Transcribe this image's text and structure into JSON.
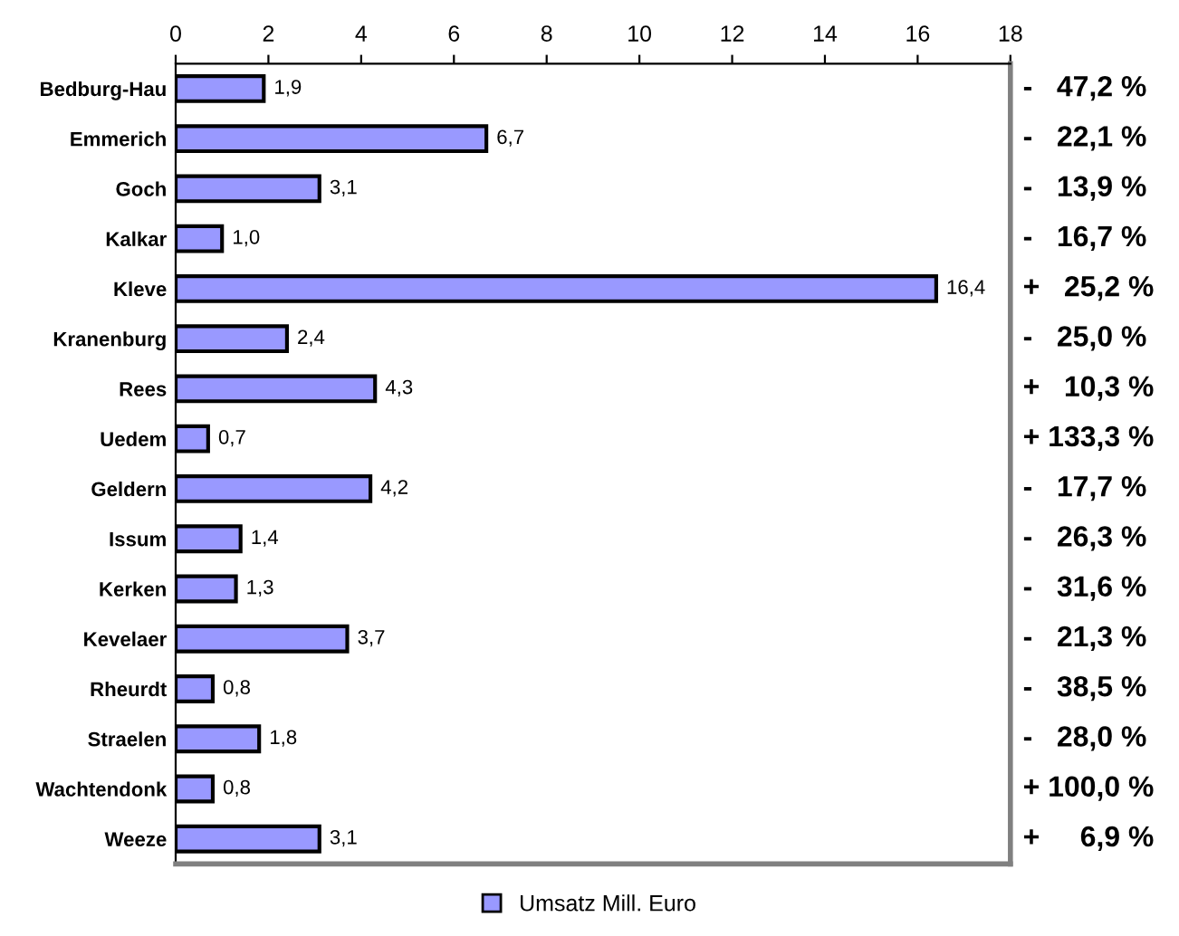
{
  "chart_data": {
    "type": "bar",
    "orientation": "horizontal",
    "categories": [
      "Bedburg-Hau",
      "Emmerich",
      "Goch",
      "Kalkar",
      "Kleve",
      "Kranenburg",
      "Rees",
      "Uedem",
      "Geldern",
      "Issum",
      "Kerken",
      "Kevelaer",
      "Rheurdt",
      "Straelen",
      "Wachtendonk",
      "Weeze"
    ],
    "series": [
      {
        "name": "Umsatz Mill. Euro",
        "color": "#9999ff",
        "values": [
          1.9,
          6.7,
          3.1,
          1.0,
          16.4,
          2.4,
          4.3,
          0.7,
          4.2,
          1.4,
          1.3,
          3.7,
          0.8,
          1.8,
          0.8,
          3.1
        ],
        "value_labels": [
          "1,9",
          "6,7",
          "3,1",
          "1,0",
          "16,4",
          "2,4",
          "4,3",
          "0,7",
          "4,2",
          "1,4",
          "1,3",
          "3,7",
          "0,8",
          "1,8",
          "0,8",
          "3,1"
        ]
      }
    ],
    "xlim": [
      0,
      18
    ],
    "xticks": [
      0,
      2,
      4,
      6,
      8,
      10,
      12,
      14,
      16,
      18
    ],
    "grid": false,
    "legend": "bottom",
    "annotations": [
      "-   47,2 %",
      "-   22,1 %",
      "-   13,9 %",
      "-   16,7 %",
      "+   25,2 %",
      "-   25,0 %",
      "+   10,3 %",
      "+ 133,3 %",
      "-   17,7 %",
      "-   26,3 %",
      "-   31,6 %",
      "-   21,3 %",
      "-   38,5 %",
      "-   28,0 %",
      "+ 100,0 %",
      "+     6,9 %"
    ]
  }
}
